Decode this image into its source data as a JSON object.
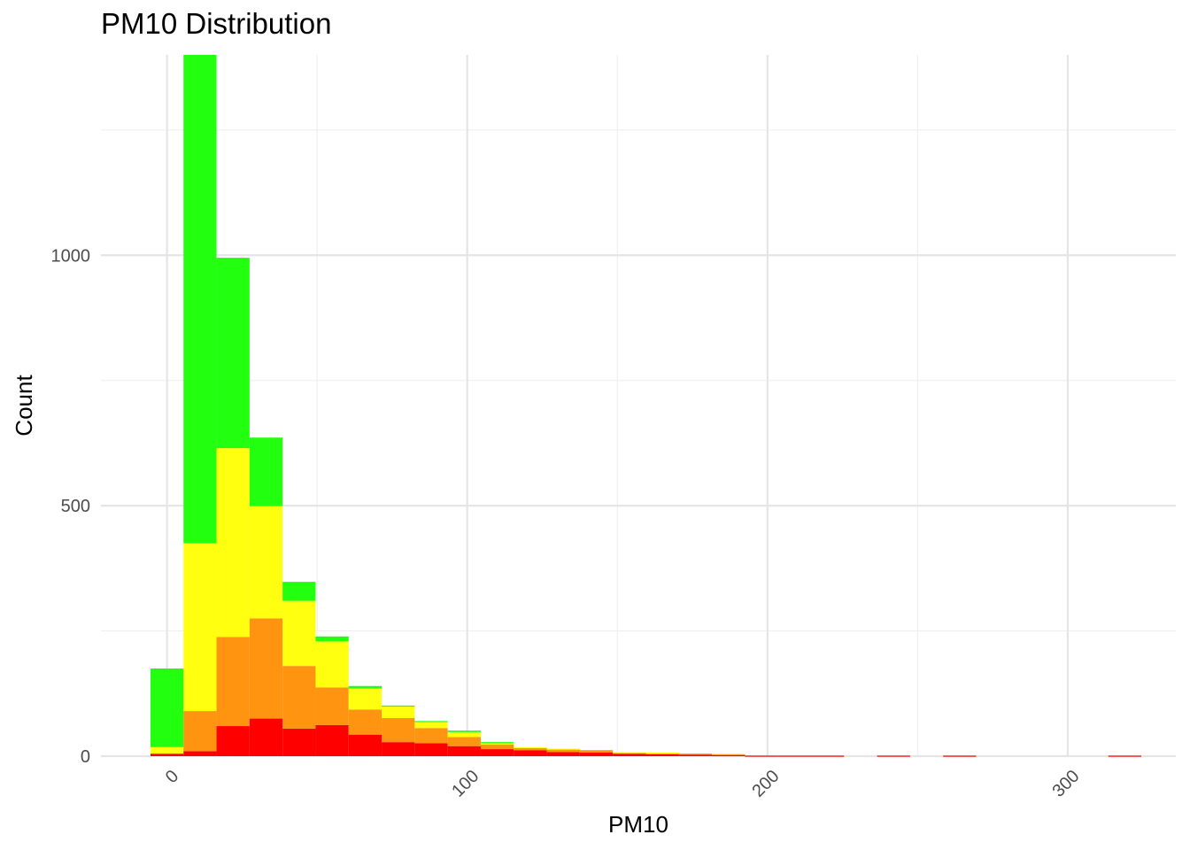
{
  "chart_data": {
    "type": "bar",
    "stacked": true,
    "title": "PM10 Distribution",
    "xlabel": "PM10",
    "ylabel": "Count",
    "xlim": [
      -22,
      336
    ],
    "ylim": [
      0,
      1400
    ],
    "x_ticks": [
      0,
      100,
      200,
      300
    ],
    "x_tick_labels": [
      "0",
      "100",
      "200",
      "300"
    ],
    "x_tick_rotation": -45,
    "y_ticks": [
      0,
      500,
      1000
    ],
    "y_tick_labels": [
      "0",
      "500",
      "1000"
    ],
    "y_minor_gridlines": [
      250,
      750,
      1250
    ],
    "x_minor_gridlines": [
      50,
      150,
      250
    ],
    "grid": true,
    "legend": "none",
    "bin_width": 11,
    "bins_start": [
      -5.5,
      5.5,
      16.5,
      27.5,
      38.5,
      49.5,
      60.5,
      71.5,
      82.5,
      93.5,
      104.5,
      115.5,
      126.5,
      137.5,
      148.5,
      159.5,
      170.5,
      181.5,
      192.5,
      203.5,
      214.5,
      225.5,
      236.5,
      247.5,
      258.5,
      269.5,
      280.5,
      291.5,
      302.5,
      313.5
    ],
    "series": [
      {
        "color": "#ff0000",
        "values": [
          5,
          10,
          60,
          75,
          55,
          62,
          43,
          28,
          26,
          20,
          14,
          12,
          8,
          7,
          5,
          4,
          3,
          2,
          1,
          1,
          1,
          0,
          1,
          0,
          1,
          0,
          0,
          0,
          0,
          1
        ]
      },
      {
        "color": "#ff9410",
        "values": [
          0,
          80,
          178,
          200,
          125,
          75,
          50,
          48,
          30,
          18,
          9,
          4,
          6,
          5,
          2,
          2,
          2,
          2,
          0,
          0,
          0,
          0,
          0,
          0,
          0,
          0,
          0,
          0,
          0,
          0
        ]
      },
      {
        "color": "#ffff0f",
        "values": [
          13,
          335,
          377,
          224,
          130,
          92,
          42,
          23,
          13,
          10,
          4,
          2,
          1,
          0,
          1,
          1,
          0,
          0,
          0,
          0,
          0,
          0,
          0,
          0,
          0,
          0,
          0,
          0,
          0,
          0
        ]
      },
      {
        "color": "#22ff0f",
        "values": [
          157,
          975,
          380,
          137,
          38,
          10,
          5,
          2,
          1,
          3,
          1,
          0,
          0,
          0,
          0,
          0,
          0,
          0,
          0,
          0,
          0,
          0,
          0,
          0,
          0,
          0,
          0,
          0,
          0,
          0
        ]
      }
    ]
  },
  "colors": {
    "grid_major": "#e5e5e5",
    "grid_minor": "#f0f0f0",
    "tick_text": "#4d4d4d"
  }
}
